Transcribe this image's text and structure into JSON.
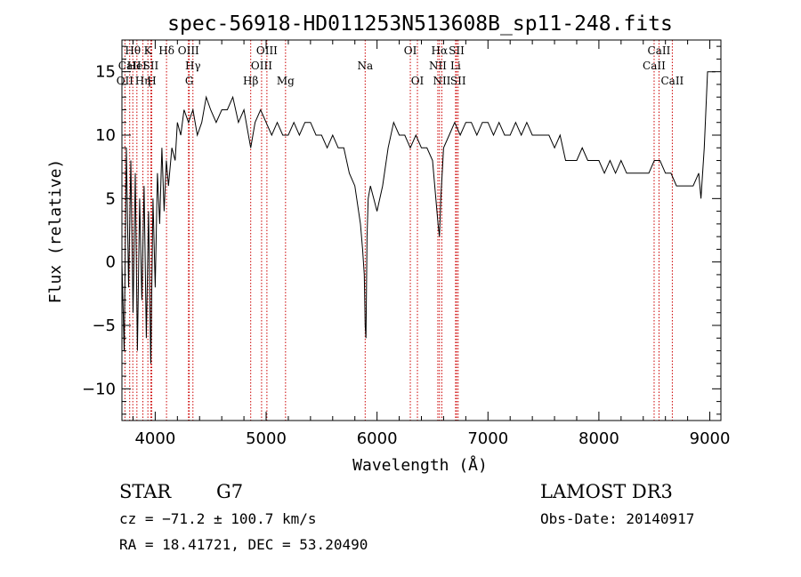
{
  "chart_data": {
    "type": "line",
    "title": "spec-56918-HD011253N513608B_sp11-248.fits",
    "xlabel": "Wavelength (Å)",
    "ylabel": "Flux (relative)",
    "xlim": [
      3700,
      9100
    ],
    "ylim": [
      -12.5,
      17.5
    ],
    "xticks": [
      "4000",
      "5000",
      "6000",
      "7000",
      "8000",
      "9000"
    ],
    "xtick_values": [
      4000,
      5000,
      6000,
      7000,
      8000,
      9000
    ],
    "yticks": [
      "−10",
      "−5",
      "0",
      "5",
      "10",
      "15"
    ],
    "ytick_values": [
      -10,
      -5,
      0,
      5,
      10,
      15
    ],
    "grid": false,
    "line_color": "#000000",
    "marker_color": "#cc0000",
    "series": [
      {
        "x": [
          3700,
          3720,
          3740,
          3760,
          3780,
          3800,
          3820,
          3840,
          3860,
          3880,
          3900,
          3920,
          3940,
          3960,
          3980,
          4000,
          4020,
          4040,
          4060,
          4080,
          4100,
          4120,
          4150,
          4180,
          4200,
          4230,
          4260,
          4300,
          4340,
          4380,
          4420,
          4460,
          4500,
          4550,
          4600,
          4650,
          4700,
          4750,
          4800,
          4861,
          4900,
          4950,
          5000,
          5050,
          5100,
          5150,
          5200,
          5250,
          5300,
          5350,
          5400,
          5450,
          5500,
          5550,
          5600,
          5650,
          5700,
          5750,
          5800,
          5850,
          5870,
          5885,
          5893,
          5900,
          5910,
          5920,
          5940,
          5970,
          6000,
          6050,
          6100,
          6150,
          6200,
          6250,
          6300,
          6350,
          6400,
          6450,
          6500,
          6530,
          6550,
          6563,
          6575,
          6600,
          6650,
          6700,
          6750,
          6800,
          6850,
          6900,
          6950,
          7000,
          7050,
          7100,
          7150,
          7200,
          7250,
          7300,
          7350,
          7400,
          7450,
          7500,
          7550,
          7600,
          7650,
          7700,
          7750,
          7800,
          7850,
          7900,
          7950,
          8000,
          8050,
          8100,
          8150,
          8200,
          8250,
          8300,
          8350,
          8400,
          8450,
          8500,
          8550,
          8600,
          8650,
          8700,
          8750,
          8800,
          8850,
          8900,
          8920,
          8950,
          8980,
          9000,
          9050
        ],
        "y": [
          0,
          -7,
          9,
          -2,
          8,
          -4,
          7,
          -7,
          5,
          -3,
          6,
          -6,
          4,
          -8,
          5,
          -2,
          7,
          3,
          9,
          4,
          8,
          6,
          9,
          8,
          11,
          10,
          12,
          11,
          12,
          10,
          11,
          13,
          12,
          11,
          12,
          12,
          13,
          11,
          12,
          9,
          11,
          12,
          11,
          10,
          11,
          10,
          10,
          11,
          10,
          11,
          11,
          10,
          10,
          9,
          10,
          9,
          9,
          7,
          6,
          3,
          1,
          -1,
          -5,
          -6,
          2,
          5,
          6,
          5,
          4,
          6,
          9,
          11,
          10,
          10,
          9,
          10,
          9,
          9,
          8,
          5,
          3,
          2,
          5,
          9,
          10,
          11,
          10,
          11,
          11,
          10,
          11,
          11,
          10,
          11,
          10,
          10,
          11,
          10,
          11,
          10,
          10,
          10,
          10,
          9,
          10,
          8,
          8,
          8,
          9,
          8,
          8,
          8,
          7,
          8,
          7,
          8,
          7,
          7,
          7,
          7,
          7,
          8,
          8,
          7,
          7,
          6,
          6,
          6,
          6,
          7,
          5,
          9,
          15,
          15,
          15
        ]
      }
    ],
    "line_markers": [
      {
        "label": "Hθ",
        "x": 3798,
        "row": 1
      },
      {
        "label": "OII",
        "x": 3727,
        "row": 3
      },
      {
        "label": "CaII",
        "x": 3770,
        "row": 2
      },
      {
        "label": "HeI",
        "x": 3835,
        "row": 2
      },
      {
        "label": "Hη",
        "x": 3889,
        "row": 3
      },
      {
        "label": "K",
        "x": 3934,
        "row": 1
      },
      {
        "label": "SII",
        "x": 3960,
        "row": 2
      },
      {
        "label": "H",
        "x": 3969,
        "row": 3
      },
      {
        "label": "Hδ",
        "x": 4102,
        "row": 1
      },
      {
        "label": "OIII",
        "x": 4300,
        "row": 1
      },
      {
        "label": "Hγ",
        "x": 4340,
        "row": 2
      },
      {
        "label": "G",
        "x": 4307,
        "row": 3
      },
      {
        "label": "Hβ",
        "x": 4861,
        "row": 3
      },
      {
        "label": "OIII",
        "x": 4959,
        "row": 2
      },
      {
        "label": "OIII",
        "x": 5007,
        "row": 1
      },
      {
        "label": "Mg",
        "x": 5175,
        "row": 3
      },
      {
        "label": "Na",
        "x": 5893,
        "row": 2
      },
      {
        "label": "OI",
        "x": 6300,
        "row": 1
      },
      {
        "label": "OI",
        "x": 6364,
        "row": 3
      },
      {
        "label": "Hα",
        "x": 6563,
        "row": 1
      },
      {
        "label": "NII",
        "x": 6548,
        "row": 2
      },
      {
        "label": "NII",
        "x": 6584,
        "row": 3
      },
      {
        "label": "SII",
        "x": 6717,
        "row": 1
      },
      {
        "label": "Li",
        "x": 6708,
        "row": 2
      },
      {
        "label": "SII",
        "x": 6731,
        "row": 3
      },
      {
        "label": "CaII",
        "x": 8542,
        "row": 1
      },
      {
        "label": "CaII",
        "x": 8498,
        "row": 2
      },
      {
        "label": "CaII",
        "x": 8662,
        "row": 3
      }
    ]
  },
  "info": {
    "object_class": "STAR",
    "subclass": "G7",
    "survey": "LAMOST DR3",
    "cz": "cz = −71.2 ± 100.7 km/s",
    "obs_date": "Obs-Date: 20140917",
    "coords": "RA =  18.41721, DEC =  53.20490"
  }
}
